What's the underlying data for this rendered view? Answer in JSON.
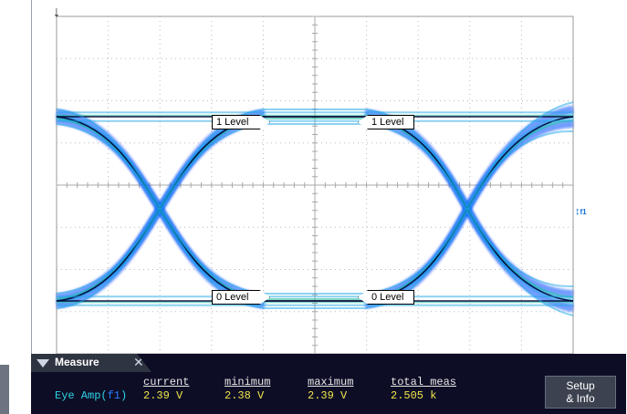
{
  "scope": {
    "trigger_icon": "down-arrow-icon",
    "reference_marker": {
      "arrow": "↕",
      "label": "f1"
    },
    "level_markers": {
      "one_level_left": "1 Level",
      "one_level_right": "1 Level",
      "zero_level_left": "0 Level",
      "zero_level_right": "0 Level"
    },
    "colors": {
      "grid": "#b8b8b8",
      "eye_outer": "#0a4cff",
      "eye_mid": "#1aa5e6",
      "eye_hot": "#2ac0a0",
      "eye_core": "#000033"
    }
  },
  "measure": {
    "tab_label": "Measure",
    "close_icon": "close-icon",
    "headers": {
      "current": "current",
      "minimum": "minimum",
      "maximum": "maximum",
      "total_meas": "total meas"
    },
    "row": {
      "name": "Eye Amp(",
      "source": "f1",
      "name_end": ")",
      "current": "2.39 V",
      "minimum": "2.38 V",
      "maximum": "2.39 V",
      "total_meas": "2.505 k"
    },
    "setup_button": {
      "line1": "Setup",
      "line2": "& Info"
    }
  }
}
